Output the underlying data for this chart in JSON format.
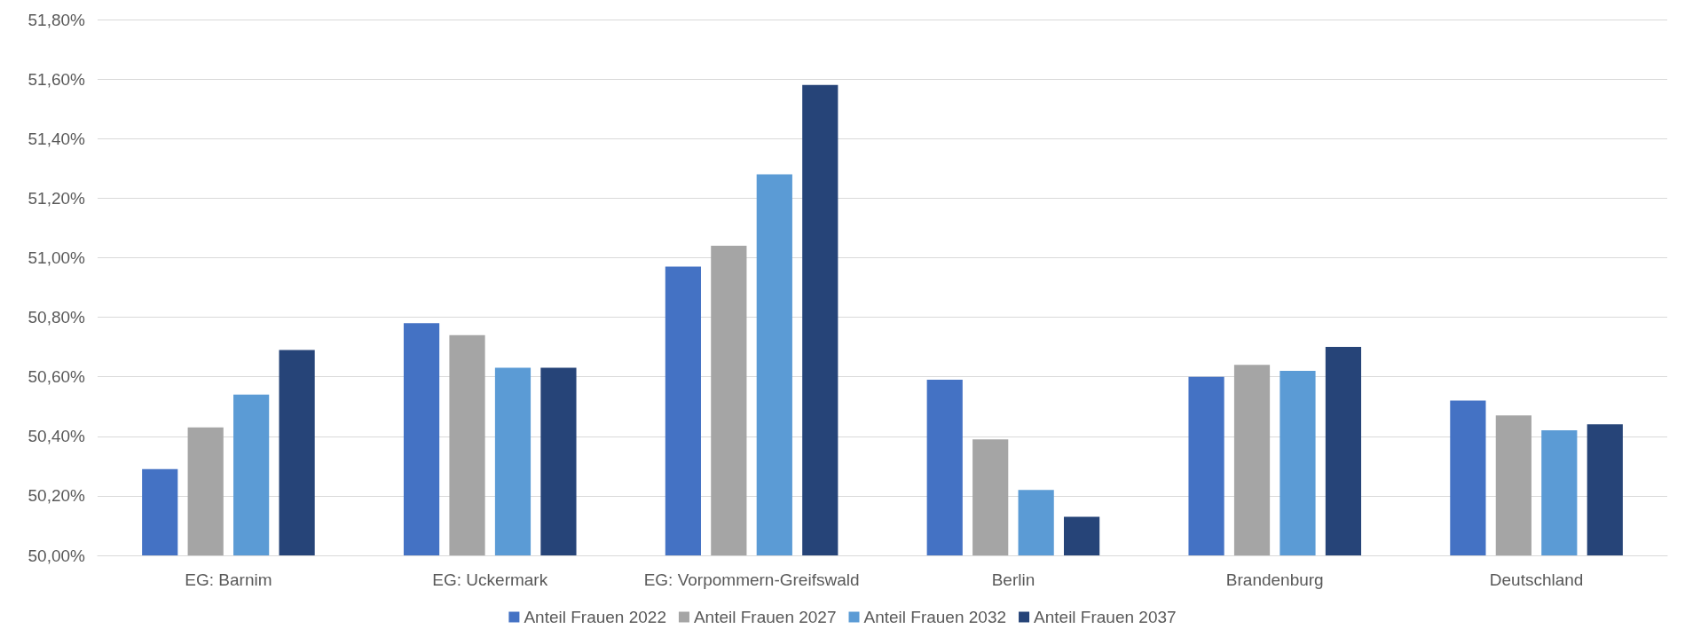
{
  "chart_data": {
    "type": "bar",
    "categories": [
      "EG: Barnim",
      "EG: Uckermark",
      "EG: Vorpommern-Greifswald",
      "Berlin",
      "Brandenburg",
      "Deutschland"
    ],
    "series": [
      {
        "name": "Anteil Frauen 2022",
        "color": "#4472c4",
        "values": [
          50.29,
          50.78,
          50.97,
          50.59,
          50.6,
          50.52
        ]
      },
      {
        "name": "Anteil Frauen 2027",
        "color": "#a5a5a5",
        "values": [
          50.43,
          50.74,
          51.04,
          50.39,
          50.64,
          50.47
        ]
      },
      {
        "name": "Anteil Frauen 2032",
        "color": "#5b9bd5",
        "values": [
          50.54,
          50.63,
          51.28,
          50.22,
          50.62,
          50.42
        ]
      },
      {
        "name": "Anteil Frauen 2037",
        "color": "#264478",
        "values": [
          50.69,
          50.63,
          51.58,
          50.13,
          50.7,
          50.44
        ]
      }
    ],
    "ylim": [
      50,
      51.8
    ],
    "yticks": [
      {
        "value": 50,
        "label": "50,00%"
      },
      {
        "value": 50.2,
        "label": "50,20%"
      },
      {
        "value": 50.4,
        "label": "50,40%"
      },
      {
        "value": 50.6,
        "label": "50,60%"
      },
      {
        "value": 50.8,
        "label": "50,80%"
      },
      {
        "value": 51,
        "label": "51,00%"
      },
      {
        "value": 51.2,
        "label": "51,20%"
      },
      {
        "value": 51.4,
        "label": "51,40%"
      },
      {
        "value": 51.6,
        "label": "51,60%"
      },
      {
        "value": 51.8,
        "label": "51,80%"
      }
    ],
    "grid": "y",
    "legend": "bottom"
  }
}
